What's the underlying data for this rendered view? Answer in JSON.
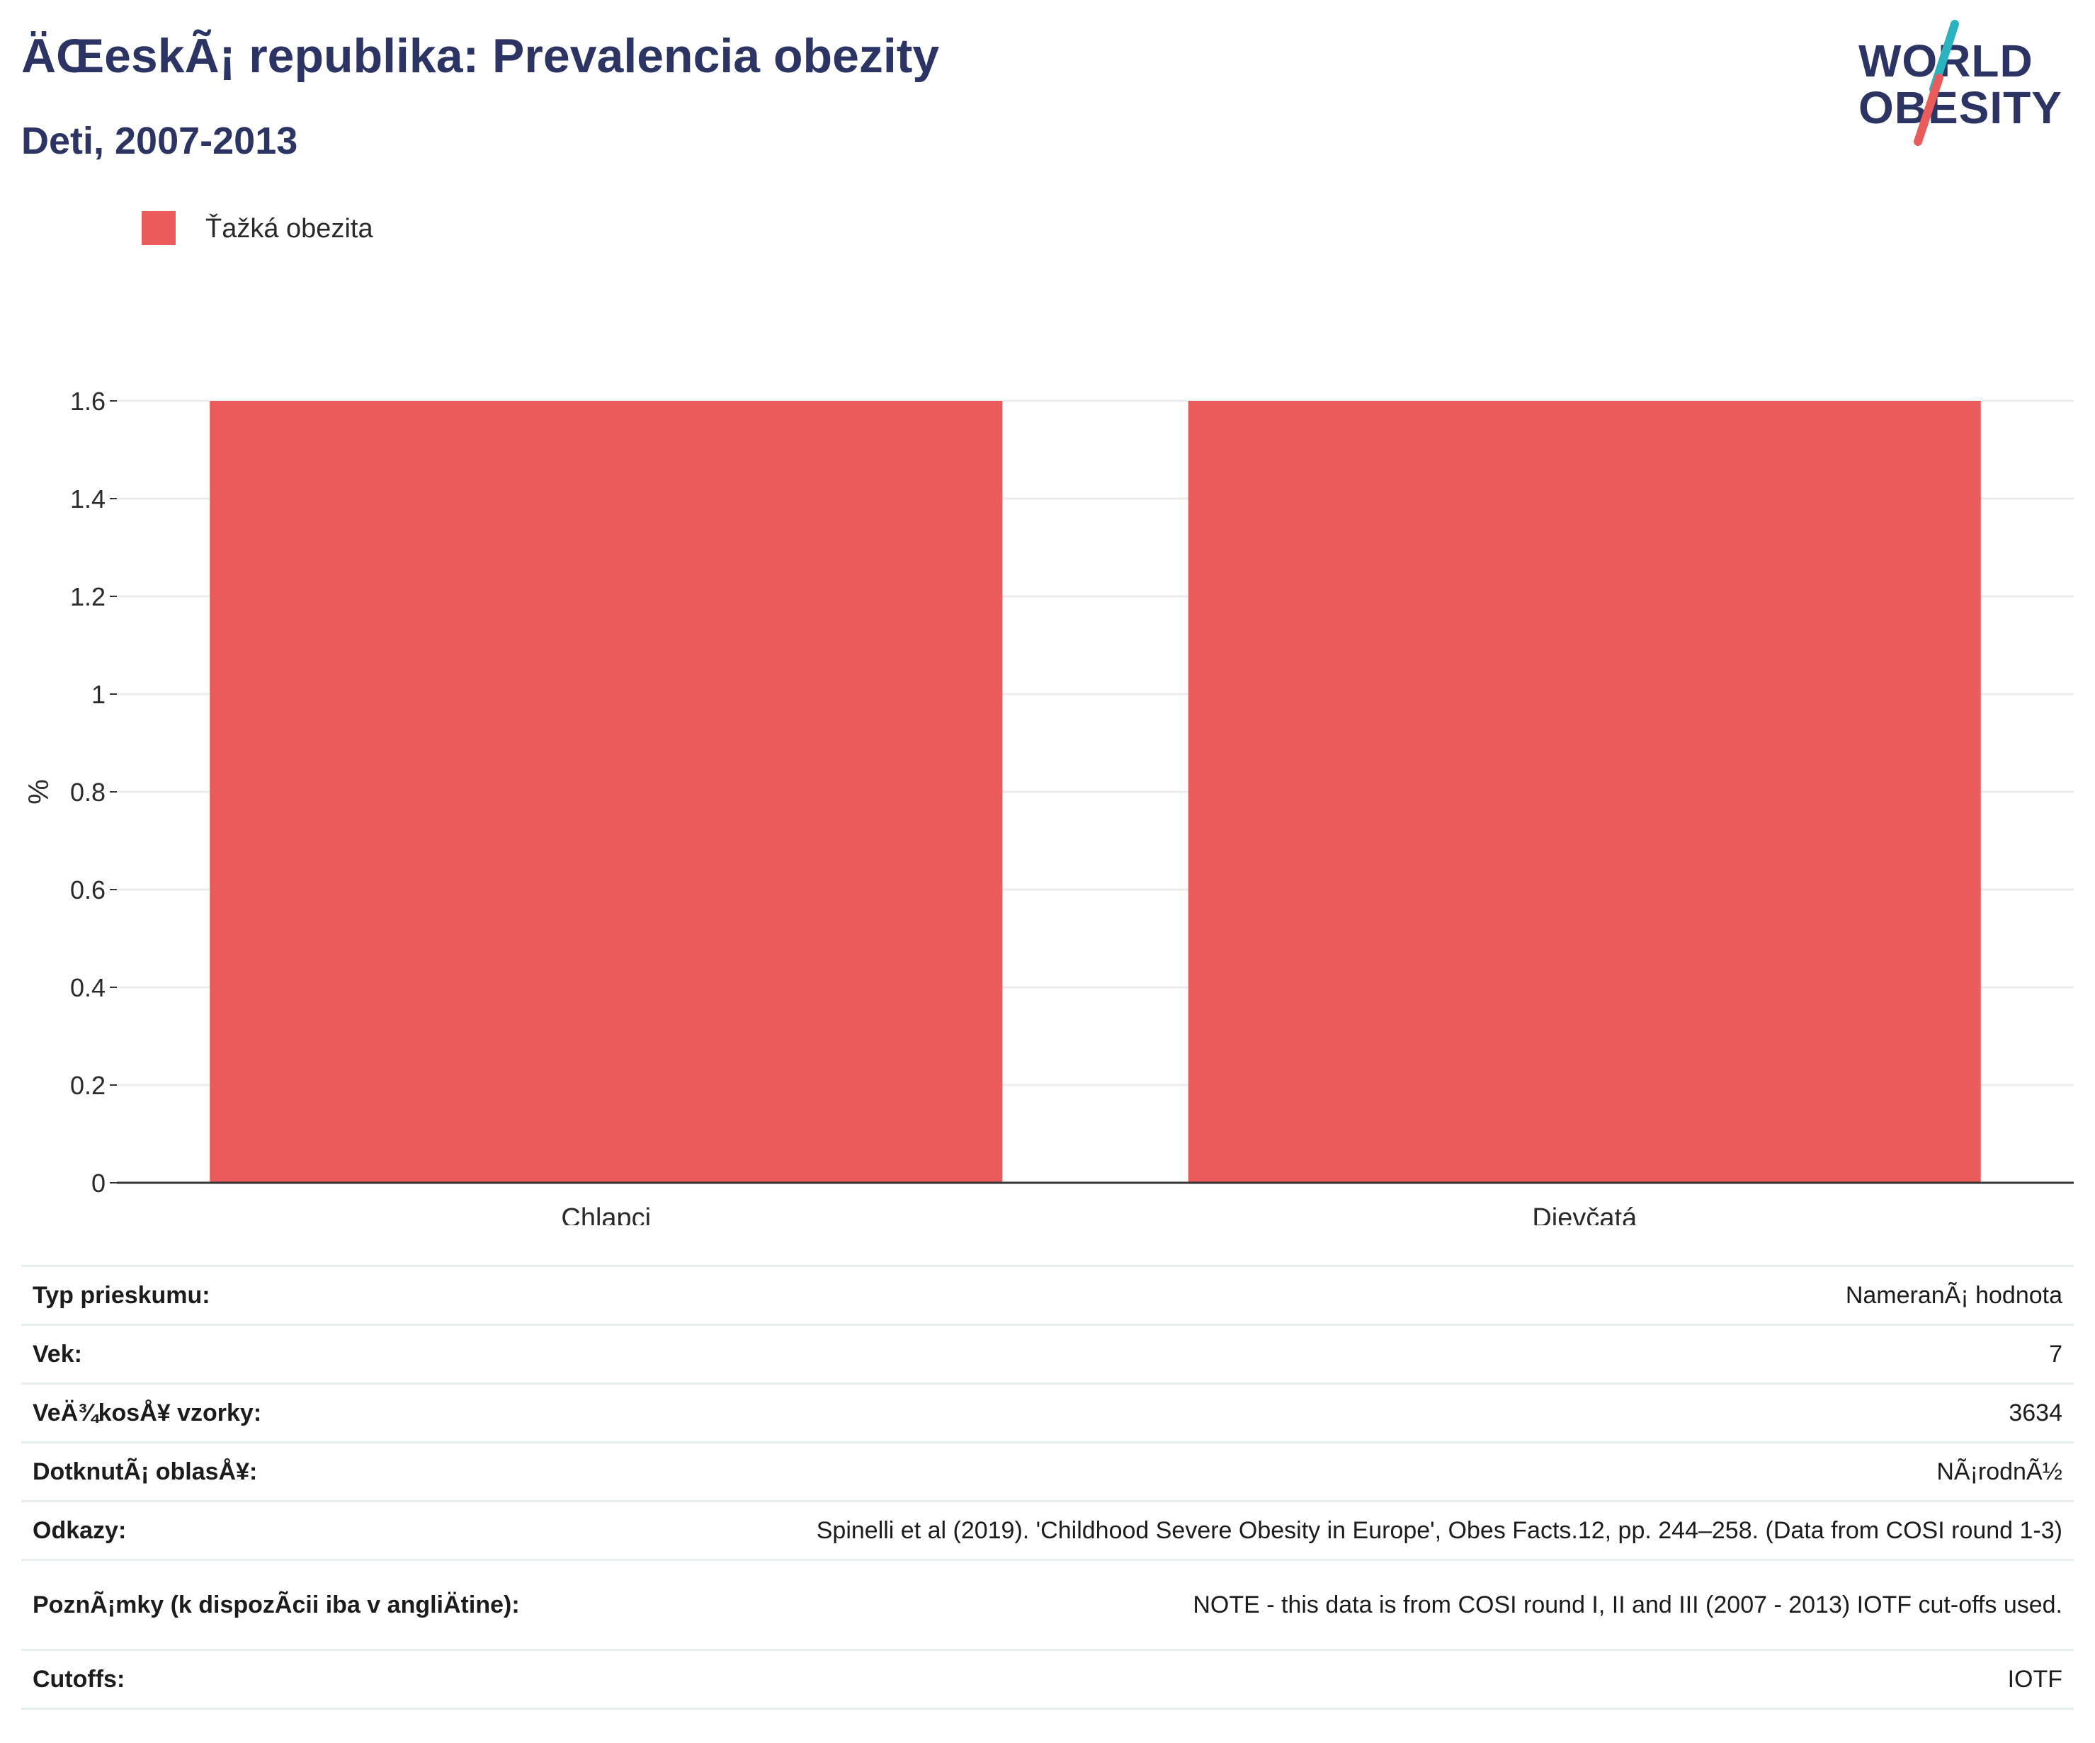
{
  "header": {
    "title": "ÄŒeskÃ¡ republika: Prevalencia obezity",
    "subtitle": "Deti, 2007-2013"
  },
  "logo": {
    "line1": "WORLD",
    "line2": "OBESITY",
    "accent_colors": [
      "#2bb3c0",
      "#ea5b5c"
    ]
  },
  "colors": {
    "bar": "#ea5b5c",
    "title": "#2b3463",
    "grid": "#e9edf0",
    "axis": "#333333"
  },
  "chart_data": {
    "type": "bar",
    "categories": [
      "Chlapci",
      "Dievčatá"
    ],
    "series": [
      {
        "name": "Ťažká obezita",
        "values": [
          1.6,
          1.6
        ]
      }
    ],
    "title": "ÄŒeskÃ¡ republika: Prevalencia obezity",
    "subtitle": "Deti, 2007-2013",
    "xlabel": "",
    "ylabel": "%",
    "ylim": [
      0,
      1.6
    ],
    "yticks": [
      "0",
      "0.2",
      "0.4",
      "0.6",
      "0.8",
      "1",
      "1.2",
      "1.4",
      "1.6"
    ],
    "grid": true,
    "legend_position": "top-left"
  },
  "info_table": [
    {
      "label": "Typ prieskumu:",
      "value": "NameranÃ¡ hodnota"
    },
    {
      "label": "Vek:",
      "value": "7"
    },
    {
      "label": "VeÄ¾kosÅ¥ vzorky:",
      "value": "3634"
    },
    {
      "label": "DotknutÃ¡ oblasÅ¥:",
      "value": "NÃ¡rodnÃ½"
    },
    {
      "label": "Odkazy:",
      "value": "Spinelli et al (2019). 'Childhood Severe Obesity in Europe', Obes Facts.12, pp. 244–258. (Data from COSI round 1-3)"
    },
    {
      "label": "PoznÃ¡mky (k dispozÃcii iba v angliÄ\btine):",
      "value": "NOTE - this data is from COSI round I, II and III (2007 - 2013) IOTF cut-offs used."
    },
    {
      "label": "Cutoffs:",
      "value": "IOTF"
    }
  ]
}
